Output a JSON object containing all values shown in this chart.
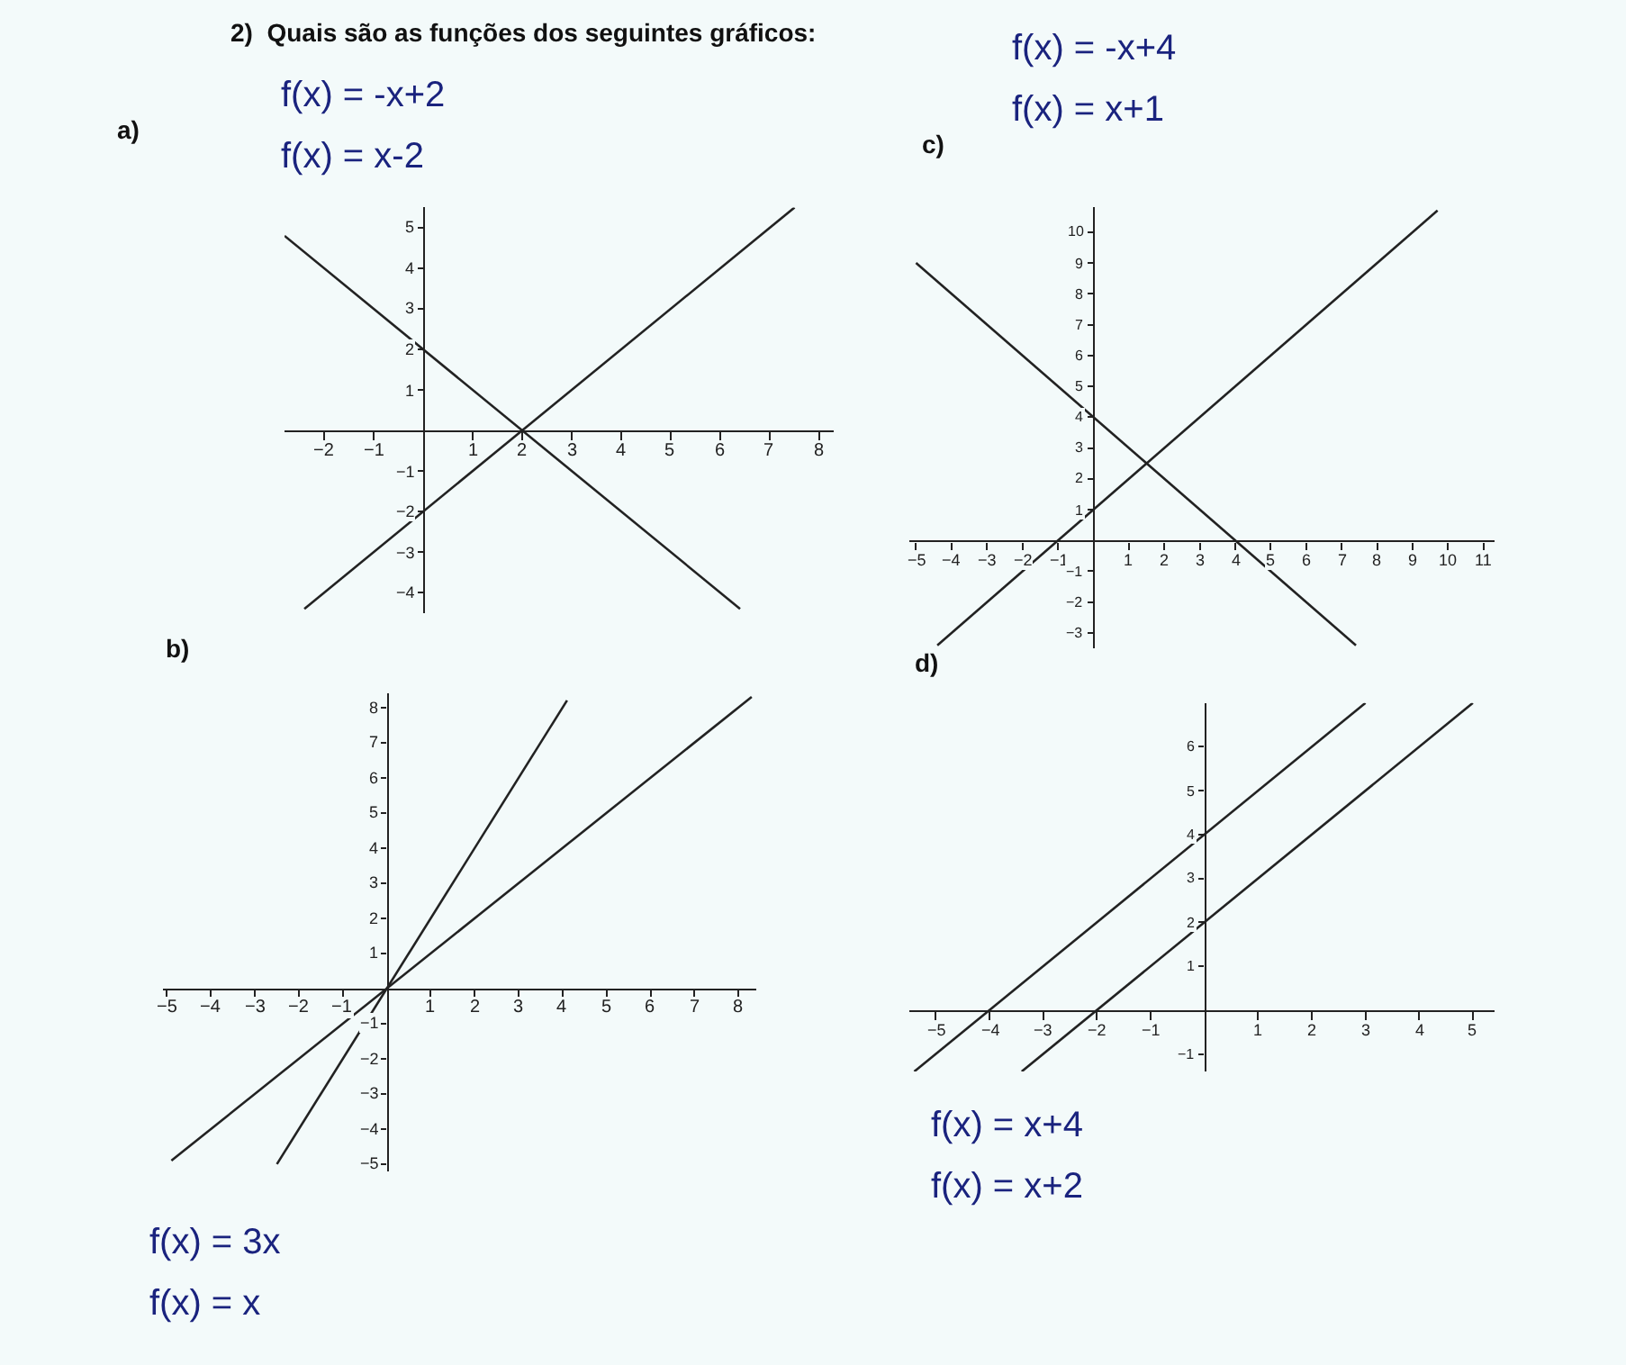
{
  "chart_data": [
    {
      "type": "line",
      "title": "2)  Quais são as funções dos seguintes gráficos:",
      "annotations": [
        "a)",
        "f(x) = -x+2",
        "f(x) = x-2"
      ],
      "series": [
        {
          "color": "#222222",
          "x": [
            -2.8,
            6.4
          ],
          "values": [
            4.8,
            -4.4
          ]
        },
        {
          "color": "#222222",
          "x": [
            -2.4,
            7.5
          ],
          "values": [
            -4.4,
            5.5
          ]
        }
      ],
      "xlim": [
        -2.8,
        8.3
      ],
      "ylim": [
        -4.5,
        5.5
      ],
      "xticks": [
        -2,
        -1,
        1,
        2,
        3,
        4,
        5,
        6,
        7,
        8
      ],
      "yticks": [
        -4,
        -3,
        -2,
        -1,
        1,
        2,
        3,
        4,
        5
      ],
      "grid": false,
      "marker": "none",
      "line_style": "solid"
    },
    {
      "type": "line",
      "annotations": [
        "c)",
        "f(x) = -x+4",
        "f(x) = x+1"
      ],
      "series": [
        {
          "color": "#222222",
          "x": [
            -5,
            7.4
          ],
          "values": [
            9,
            -3.4
          ]
        },
        {
          "color": "#222222",
          "x": [
            -4.4,
            9.7
          ],
          "values": [
            -3.4,
            10.7
          ]
        }
      ],
      "xlim": [
        -5.2,
        11.3
      ],
      "ylim": [
        -3.5,
        10.8
      ],
      "xticks": [
        -5,
        -4,
        -3,
        -2,
        -1,
        1,
        2,
        3,
        4,
        5,
        6,
        7,
        8,
        9,
        10,
        11
      ],
      "yticks": [
        -3,
        -2,
        -1,
        1,
        2,
        3,
        4,
        5,
        6,
        7,
        8,
        9,
        10
      ],
      "grid": false,
      "marker": "none",
      "line_style": "solid"
    },
    {
      "type": "line",
      "annotations": [
        "b)",
        "f(x) = 3x",
        "f(x) = x"
      ],
      "series": [
        {
          "color": "#222222",
          "x": [
            -2.5,
            4.1
          ],
          "values": [
            -5,
            8.2
          ]
        },
        {
          "color": "#222222",
          "x": [
            -4.9,
            8.3
          ],
          "values": [
            -4.9,
            8.3
          ]
        }
      ],
      "xlim": [
        -5.1,
        8.4
      ],
      "ylim": [
        -5.2,
        8.4
      ],
      "xticks": [
        -5,
        -4,
        -3,
        -2,
        -1,
        1,
        2,
        3,
        4,
        5,
        6,
        7,
        8
      ],
      "yticks": [
        -5,
        -4,
        -3,
        -2,
        -1,
        1,
        2,
        3,
        4,
        5,
        6,
        7,
        8
      ],
      "grid": false,
      "marker": "none",
      "line_style": "solid"
    },
    {
      "type": "line",
      "annotations": [
        "d)",
        "f(x) = x+4",
        "f(x) = x+2"
      ],
      "series": [
        {
          "color": "#222222",
          "x": [
            -5.4,
            3
          ],
          "values": [
            -1.4,
            7
          ]
        },
        {
          "color": "#222222",
          "x": [
            -3.4,
            5
          ],
          "values": [
            -1.4,
            7
          ]
        }
      ],
      "xlim": [
        -5.5,
        5.4
      ],
      "ylim": [
        -1.4,
        7.0
      ],
      "xticks": [
        -5,
        -4,
        -3,
        -2,
        -1,
        1,
        2,
        3,
        4,
        5
      ],
      "yticks": [
        -1,
        1,
        2,
        3,
        4,
        5,
        6
      ],
      "grid": false,
      "marker": "none",
      "line_style": "solid"
    }
  ]
}
